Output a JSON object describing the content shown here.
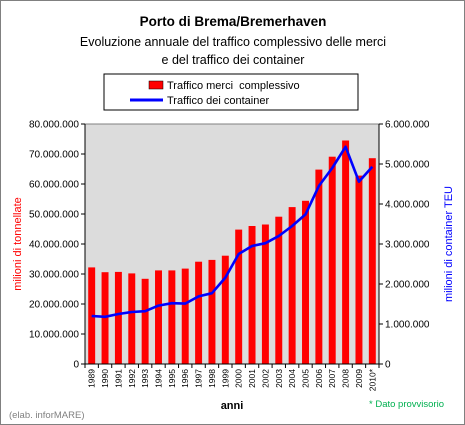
{
  "chart_data": {
    "type": "bar",
    "title": "Porto di Brema/Bremerhaven",
    "subtitle_lines": [
      "Evoluzione annuale del traffico complessivo delle merci",
      "e del traffico dei container"
    ],
    "xlabel": "anni",
    "ylabel_left": "milioni di tonnellate",
    "ylabel_right": "milioni di container TEU",
    "categories": [
      "1989",
      "1990",
      "1991",
      "1992",
      "1993",
      "1994",
      "1995",
      "1996",
      "1997",
      "1998",
      "1999",
      "2000",
      "2001",
      "2002",
      "2003",
      "2004",
      "2005",
      "2006",
      "2007",
      "2008",
      "2009",
      "2010*"
    ],
    "series": [
      {
        "name": "Traffico merci  complessivo",
        "kind": "bar",
        "axis": "left",
        "color": "#ff0000",
        "values": [
          32200000,
          30600000,
          30700000,
          30200000,
          28400000,
          31200000,
          31200000,
          31800000,
          34100000,
          34700000,
          36100000,
          44800000,
          46000000,
          46500000,
          49100000,
          52300000,
          54400000,
          64800000,
          69100000,
          74500000,
          62800000,
          68600000
        ]
      },
      {
        "name": "Traffico dei container",
        "kind": "line",
        "axis": "right",
        "color": "#0000ff",
        "values": [
          1200000,
          1180000,
          1250000,
          1300000,
          1320000,
          1460000,
          1520000,
          1510000,
          1690000,
          1770000,
          2160000,
          2750000,
          2950000,
          3020000,
          3200000,
          3450000,
          3740000,
          4450000,
          4900000,
          5430000,
          4560000,
          4930000
        ]
      }
    ],
    "ylim_left": [
      0,
      80000000
    ],
    "ylim_right": [
      0,
      6000000
    ],
    "yticks_left": [
      "0",
      "10.000.000",
      "20.000.000",
      "30.000.000",
      "40.000.000",
      "50.000.000",
      "60.000.000",
      "70.000.000",
      "80.000.000"
    ],
    "yticks_right": [
      "0",
      "1.000.000",
      "2.000.000",
      "3.000.000",
      "4.000.000",
      "5.000.000",
      "6.000.000"
    ],
    "plot_background": "#dcdcdc",
    "grid": false,
    "legend_position": "top"
  },
  "footnote": "* Dato provvisorio",
  "credit": "(elab. inforMARE)",
  "colors": {
    "footnote": "#00b050",
    "left_axis_label": "#ff0000",
    "right_axis_label": "#0000ff",
    "credit": "#808080"
  }
}
